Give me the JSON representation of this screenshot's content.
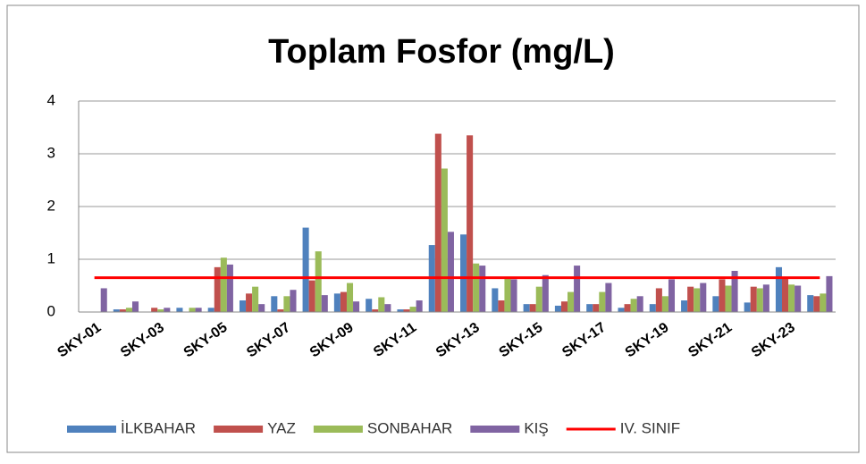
{
  "chart_data": {
    "type": "bar",
    "title": "Toplam Fosfor (mg/L)",
    "categories": [
      "SKY-01",
      null,
      "SKY-03",
      null,
      "SKY-05",
      null,
      "SKY-07",
      null,
      "SKY-09",
      null,
      "SKY-11",
      null,
      "SKY-13",
      null,
      "SKY-15",
      null,
      "SKY-17",
      null,
      "SKY-19",
      null,
      "SKY-21",
      null,
      "SKY-23",
      null
    ],
    "series": [
      {
        "name": "İLKBAHAR",
        "color": "#4f81bd",
        "values": [
          0,
          0.05,
          0,
          0.08,
          0.08,
          0.22,
          0.3,
          1.6,
          0.35,
          0.25,
          0.05,
          1.27,
          1.47,
          0.45,
          0.15,
          0.12,
          0.15,
          0.08,
          0.15,
          0.22,
          0.3,
          0.18,
          0.85,
          0.32
        ]
      },
      {
        "name": "YAZ",
        "color": "#c0504d",
        "values": [
          0,
          0.05,
          0.08,
          0,
          0.85,
          0.35,
          0.05,
          0.6,
          0.38,
          0.05,
          0.05,
          3.38,
          3.35,
          0.22,
          0.15,
          0.2,
          0.15,
          0.15,
          0.45,
          0.48,
          0.62,
          0.48,
          0.65,
          0.3
        ]
      },
      {
        "name": "SONBAHAR",
        "color": "#9bbb59",
        "values": [
          0,
          0.08,
          0.05,
          0.08,
          1.03,
          0.48,
          0.3,
          1.15,
          0.55,
          0.28,
          0.1,
          2.72,
          0.92,
          0.63,
          0.48,
          0.38,
          0.38,
          0.25,
          0.3,
          0.45,
          0.5,
          0.45,
          0.52,
          0.35
        ]
      },
      {
        "name": "KIŞ",
        "color": "#8064a2",
        "values": [
          0.45,
          0.2,
          0.08,
          0.08,
          0.9,
          0.15,
          0.42,
          0.32,
          0.2,
          0.15,
          0.22,
          1.52,
          0.88,
          0.62,
          0.7,
          0.88,
          0.55,
          0.3,
          0.62,
          0.55,
          0.78,
          0.52,
          0.5,
          0.68
        ]
      }
    ],
    "reference_lines": [
      {
        "name": "IV. SINIF",
        "value": 0.65,
        "color": "#ff0000"
      }
    ],
    "ylim": [
      0,
      4
    ],
    "yticks": [
      0,
      1,
      2,
      3,
      4
    ],
    "grid": true
  }
}
